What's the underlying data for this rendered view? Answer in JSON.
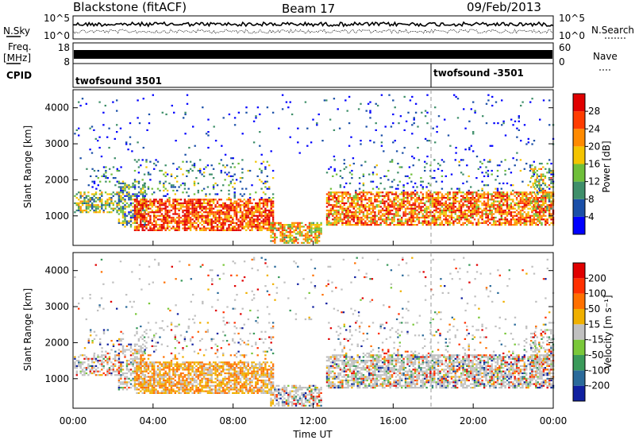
{
  "header": {
    "station": "Blackstone (fitACF)",
    "beam": "Beam 17",
    "date": "09/Feb/2013"
  },
  "left_labels": {
    "nsky": "N.Sky",
    "freq": "Freq.",
    "freq_unit": "[MHz]",
    "cpid": "CPID"
  },
  "right_labels": {
    "nsearch": "N.Search",
    "nave": "Nave"
  },
  "noise_panel": {
    "left_ticks": [
      "10^5",
      "10^0"
    ],
    "right_ticks": [
      "10^5",
      "10^0"
    ]
  },
  "freq_panel": {
    "left_ticks": [
      "18",
      "8"
    ],
    "right_ticks": [
      "60",
      "0"
    ]
  },
  "cpid_panel": {
    "segments": [
      {
        "label": "twofsound 3501",
        "start_hour": 0
      },
      {
        "label": "twofsound -3501",
        "start_hour": 18
      }
    ]
  },
  "chart_data": [
    {
      "type": "heatmap",
      "name": "power",
      "ylabel": "Slant Range [km]",
      "ylim": [
        180,
        4500
      ],
      "yticks": [
        "1000",
        "2000",
        "3000",
        "4000"
      ],
      "xlim": [
        0,
        24
      ],
      "xticks": [
        "00:00",
        "04:00",
        "08:00",
        "12:00",
        "16:00",
        "20:00",
        "00:00"
      ],
      "colorbar": {
        "label": "Power [dB]",
        "ticks": [
          "4",
          "8",
          "12",
          "16",
          "20",
          "24",
          "28"
        ],
        "colors": [
          "#0000ff",
          "#1a4fa8",
          "#3f8f6a",
          "#6fbf3a",
          "#f4c400",
          "#ff8a00",
          "#ff3c00",
          "#e00000"
        ]
      }
    },
    {
      "type": "heatmap",
      "name": "velocity",
      "ylabel": "Slant Range [km]",
      "xlabel": "Time UT",
      "ylim": [
        180,
        4500
      ],
      "yticks": [
        "1000",
        "2000",
        "3000",
        "4000"
      ],
      "xlim": [
        0,
        24
      ],
      "xticks": [
        "00:00",
        "04:00",
        "08:00",
        "12:00",
        "16:00",
        "20:00",
        "00:00"
      ],
      "colorbar": {
        "label": "Velocity [m s⁻¹]",
        "ticks": [
          "200",
          "100",
          "50",
          "15",
          "-15",
          "-50",
          "-100",
          "-200"
        ],
        "colors": [
          "#1020a0",
          "#2a6a9a",
          "#3a9a5a",
          "#7ac83a",
          "#c0c0c0",
          "#f0b000",
          "#ff7000",
          "#ff3000",
          "#e00000"
        ]
      }
    }
  ]
}
